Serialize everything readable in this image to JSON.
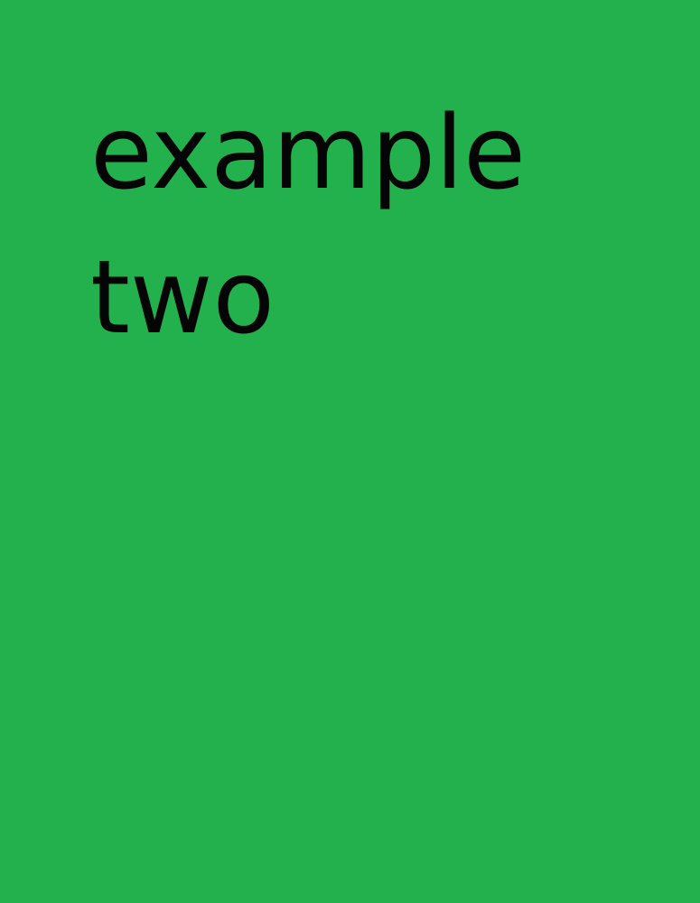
{
  "page": {
    "background_color": "#23b14d",
    "text_color": "#050505",
    "title_lines": [
      "example",
      "two"
    ]
  }
}
